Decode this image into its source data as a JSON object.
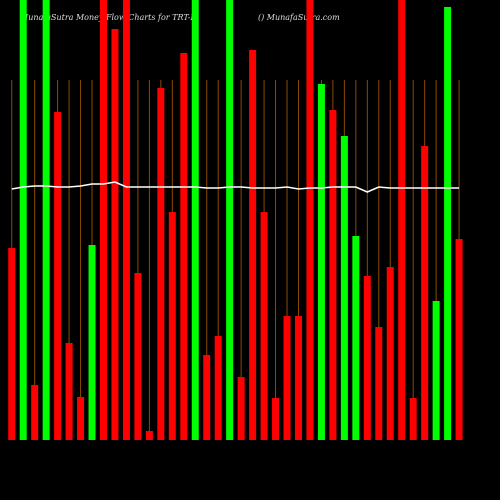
{
  "chart_data": {
    "type": "bar",
    "title": "MunafaSutra  Money Flow  Charts for TRT-F",
    "subtitle": "() MunafaSutra.com",
    "categories": [
      null,
      null,
      null,
      null,
      null,
      null,
      null,
      null,
      null,
      null,
      null,
      null,
      null,
      null,
      null,
      null,
      null,
      null,
      null,
      null,
      null,
      null,
      null,
      null,
      null,
      null,
      null,
      null,
      null,
      null,
      null,
      null,
      null,
      null,
      null,
      null,
      null,
      null,
      null,
      null
    ],
    "series": [
      {
        "values": [
          192,
          440,
          55,
          440,
          328,
          97,
          43,
          195,
          440,
          411,
          440,
          167,
          9,
          352,
          228,
          387,
          440,
          85,
          104,
          440,
          63,
          390,
          228,
          42,
          124,
          124,
          440,
          356,
          330,
          304,
          204,
          164,
          113,
          173,
          440,
          42,
          294,
          139,
          433,
          201
        ],
        "colors": [
          "#f00",
          "#0f0",
          "#f00",
          "#0f0",
          "#f00",
          "#f00",
          "#f00",
          "#0f0",
          "#f00",
          "#f00",
          "#f00",
          "#f00",
          "#f00",
          "#f00",
          "#f00",
          "#f00",
          "#0f0",
          "#f00",
          "#f00",
          "#0f0",
          "#f00",
          "#f00",
          "#f00",
          "#f00",
          "#f00",
          "#f00",
          "#f00",
          "#0f0",
          "#f00",
          "#0f0",
          "#0f0",
          "#f00",
          "#f00",
          "#f00",
          "#f00",
          "#f00",
          "#f00",
          "#0f0",
          "#0f0",
          "#f00"
        ]
      },
      {
        "type": "line",
        "color": "#fff",
        "values": [
          251,
          253,
          254,
          254,
          253,
          253,
          254,
          256,
          256,
          258,
          253,
          253,
          253,
          253,
          253,
          253,
          253,
          252,
          252,
          253,
          253,
          252,
          252,
          252,
          253,
          251,
          252,
          252,
          253,
          253,
          253,
          248,
          253,
          252,
          252,
          252,
          252,
          252,
          252,
          252
        ]
      }
    ],
    "ylim": [
      0,
      440
    ],
    "grid_color": "#8a4a00"
  }
}
